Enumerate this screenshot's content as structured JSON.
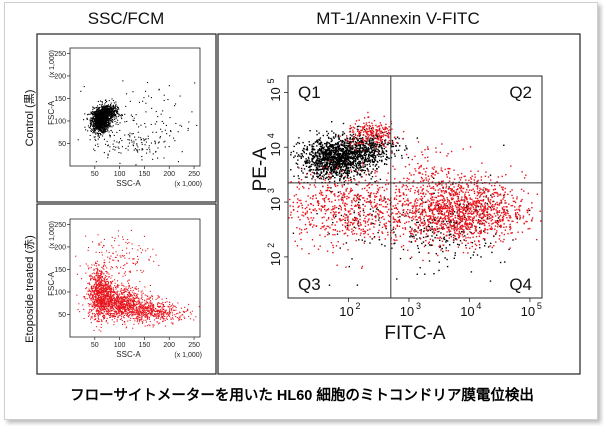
{
  "headers": {
    "left": "SSC/FCM",
    "right": "MT-1/Annexin V-FITC"
  },
  "caption": "フローサイトメーターを用いた HL60 細胞のミトコンドリア膜電位検出",
  "colors": {
    "control": "#000000",
    "treated": "#e8141c",
    "axis": "#222222"
  },
  "panels": {
    "control": {
      "row_label": "Control (黒)"
    },
    "treated": {
      "row_label": "Etoposide treated (赤)"
    }
  },
  "chart_data": [
    {
      "type": "scatter",
      "name": "control-ssc-fsc",
      "xlabel": "SSC-A",
      "xunit": "(x 1,000)",
      "ylabel": "FSC-A",
      "yunit": "(x 1,000)",
      "xlim": [
        0,
        262
      ],
      "ylim": [
        0,
        262
      ],
      "xticks": [
        50,
        100,
        150,
        200,
        250
      ],
      "yticks": [
        50,
        100,
        150,
        200,
        250
      ],
      "series": [
        {
          "color": "#000000",
          "clusters": [
            {
              "cx": 60,
              "cy": 102,
              "sx": 9,
              "sy": 13,
              "n": 1100
            },
            {
              "cx": 75,
              "cy": 118,
              "sx": 10,
              "sy": 11,
              "n": 450
            },
            {
              "cx": 150,
              "cy": 95,
              "sx": 50,
              "sy": 45,
              "n": 120
            },
            {
              "cx": 120,
              "cy": 50,
              "sx": 40,
              "sy": 18,
              "n": 90
            }
          ]
        }
      ]
    },
    {
      "type": "scatter",
      "name": "treated-ssc-fsc",
      "xlabel": "SSC-A",
      "xunit": "(x 1,000)",
      "ylabel": "FSC-A",
      "yunit": "(x 1,000)",
      "xlim": [
        0,
        262
      ],
      "ylim": [
        0,
        262
      ],
      "xticks": [
        50,
        100,
        150,
        200,
        250
      ],
      "yticks": [
        50,
        100,
        150,
        200,
        250
      ],
      "series": [
        {
          "color": "#e8141c",
          "clusters": [
            {
              "cx": 60,
              "cy": 100,
              "sx": 12,
              "sy": 28,
              "n": 700
            },
            {
              "cx": 95,
              "cy": 78,
              "sx": 28,
              "sy": 18,
              "n": 800
            },
            {
              "cx": 140,
              "cy": 60,
              "sx": 35,
              "sy": 14,
              "n": 450
            },
            {
              "cx": 185,
              "cy": 55,
              "sx": 30,
              "sy": 10,
              "n": 180
            },
            {
              "cx": 95,
              "cy": 170,
              "sx": 35,
              "sy": 35,
              "n": 150
            }
          ]
        }
      ]
    },
    {
      "type": "scatter",
      "name": "mt1-annexin",
      "xlabel": "FITC-A",
      "ylabel": "PE-A",
      "xscale": "log",
      "yscale": "log",
      "xlim": [
        1,
        5.2
      ],
      "ylim": [
        1.25,
        5.3
      ],
      "xticks": [
        2,
        3,
        4,
        5
      ],
      "yticks": [
        2,
        3,
        4,
        5
      ],
      "gates": {
        "x": 2.7,
        "y": 3.35
      },
      "quadrants": [
        "Q1",
        "Q2",
        "Q3",
        "Q4"
      ],
      "series": [
        {
          "color": "#000000",
          "clusters": [
            {
              "cx": 1.8,
              "cy": 3.8,
              "sx": 0.3,
              "sy": 0.18,
              "n": 1300
            },
            {
              "cx": 2.3,
              "cy": 4.0,
              "sx": 0.25,
              "sy": 0.15,
              "n": 350
            },
            {
              "cx": 3.6,
              "cy": 2.55,
              "sx": 0.5,
              "sy": 0.35,
              "n": 250
            },
            {
              "cx": 2.2,
              "cy": 2.6,
              "sx": 0.4,
              "sy": 0.4,
              "n": 60
            }
          ]
        },
        {
          "color": "#e8141c",
          "clusters": [
            {
              "cx": 3.8,
              "cy": 2.85,
              "sx": 0.55,
              "sy": 0.3,
              "n": 1400
            },
            {
              "cx": 1.9,
              "cy": 2.9,
              "sx": 0.5,
              "sy": 0.35,
              "n": 600
            },
            {
              "cx": 2.4,
              "cy": 4.25,
              "sx": 0.22,
              "sy": 0.12,
              "n": 220
            },
            {
              "cx": 3.3,
              "cy": 3.6,
              "sx": 0.3,
              "sy": 0.2,
              "n": 100
            }
          ]
        }
      ]
    }
  ]
}
